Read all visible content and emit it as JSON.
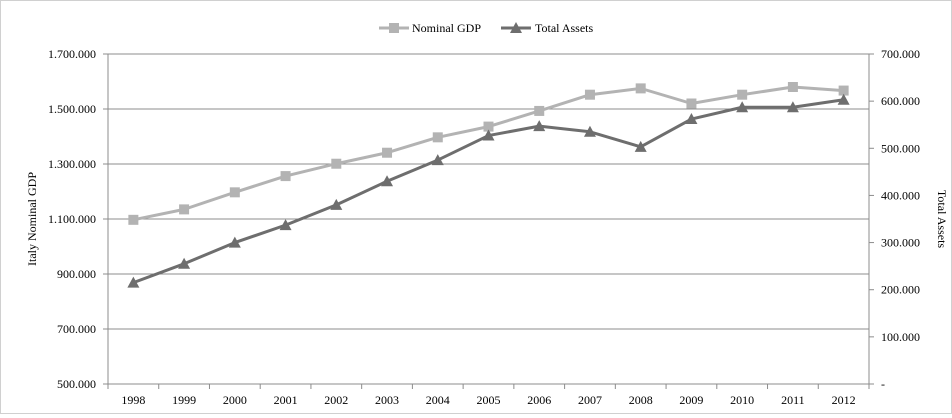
{
  "chart_data": {
    "type": "line",
    "title": "",
    "categories": [
      "1998",
      "1999",
      "2000",
      "2001",
      "2002",
      "2003",
      "2004",
      "2005",
      "2006",
      "2007",
      "2008",
      "2009",
      "2010",
      "2011",
      "2012"
    ],
    "series": [
      {
        "name": "Nominal GDP",
        "axis": "left",
        "color": "#b3b3b3",
        "marker": "square",
        "values": [
          1097000,
          1135000,
          1197000,
          1256000,
          1301000,
          1341000,
          1397000,
          1436000,
          1493000,
          1552000,
          1575000,
          1520000,
          1552000,
          1580000,
          1567000
        ]
      },
      {
        "name": "Total Assets",
        "axis": "right",
        "color": "#6e6e6e",
        "marker": "triangle",
        "values": [
          215000,
          255000,
          300000,
          337000,
          380000,
          430000,
          475000,
          527000,
          547000,
          535000,
          503000,
          562000,
          587000,
          587000,
          603000
        ]
      }
    ],
    "y_left": {
      "label": "Italy Nominal GDP",
      "range": [
        500000,
        1700000
      ],
      "ticks": [
        500000,
        700000,
        900000,
        1100000,
        1300000,
        1500000,
        1700000
      ],
      "tick_labels": [
        "500.000",
        "700.000",
        "900.000",
        "1.100.000",
        "1.300.000",
        "1.500.000",
        "1.700.000"
      ]
    },
    "y_right": {
      "label": "Total Assets",
      "range": [
        0,
        700000
      ],
      "ticks": [
        0,
        100000,
        200000,
        300000,
        400000,
        500000,
        600000,
        700000
      ],
      "tick_labels": [
        "-",
        "100.000",
        "200.000",
        "300.000",
        "400.000",
        "500.000",
        "600.000",
        "700.000"
      ]
    },
    "grid": true,
    "legend_position": "top-center"
  }
}
